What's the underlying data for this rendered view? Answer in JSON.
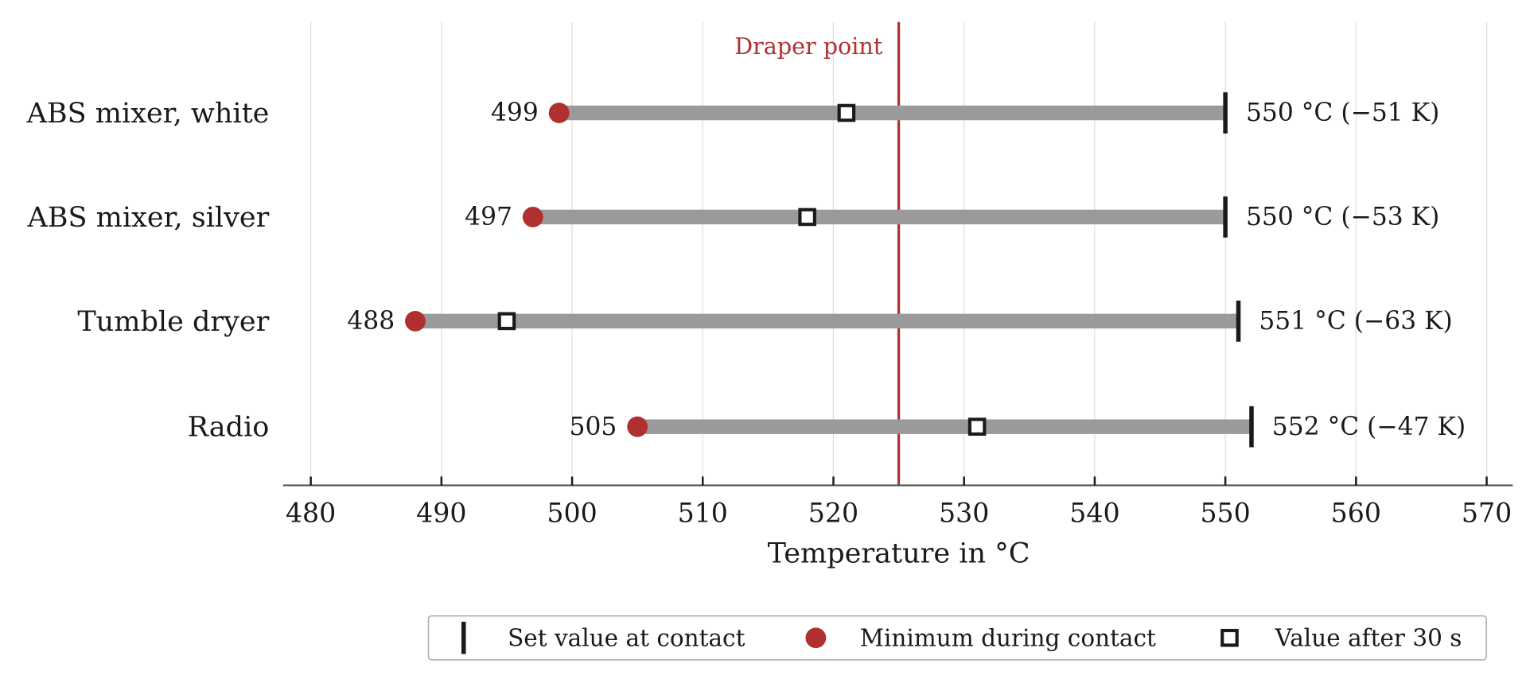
{
  "chart_data": {
    "type": "dumbbell",
    "title": "",
    "xlabel": "Temperature in °C",
    "ylabel": "",
    "xlim": [
      478,
      572
    ],
    "xticks": [
      480,
      490,
      500,
      510,
      520,
      530,
      540,
      550,
      560,
      570
    ],
    "grid": "vertical",
    "reference_line": {
      "value": 525,
      "label": "Draper point"
    },
    "categories": [
      "ABS mixer, white",
      "ABS mixer, silver",
      "Tumble dryer",
      "Radio"
    ],
    "series": [
      {
        "name": "Set value at contact",
        "values": [
          550,
          550,
          551,
          552
        ]
      },
      {
        "name": "Minimum during contact",
        "values": [
          499,
          497,
          488,
          505
        ]
      },
      {
        "name": "Value after 30 s",
        "values": [
          521,
          518,
          495,
          531
        ]
      }
    ],
    "min_labels": [
      "499",
      "497",
      "488",
      "505"
    ],
    "set_labels": [
      "550 °C  (−51 K)",
      "550 °C  (−53 K)",
      "551 °C  (−63 K)",
      "552 °C  (−47 K)"
    ],
    "legend": {
      "placement": "bottom-right",
      "entries": [
        "Set value at contact",
        "Minimum during contact",
        "Value after 30 s"
      ]
    },
    "colors": {
      "bar": "#9a9a9a",
      "min_marker": "#b03030",
      "reference": "#b03030",
      "set_marker": "#1a1a1a",
      "grid": "#dddddd",
      "axis": "#555555"
    }
  }
}
